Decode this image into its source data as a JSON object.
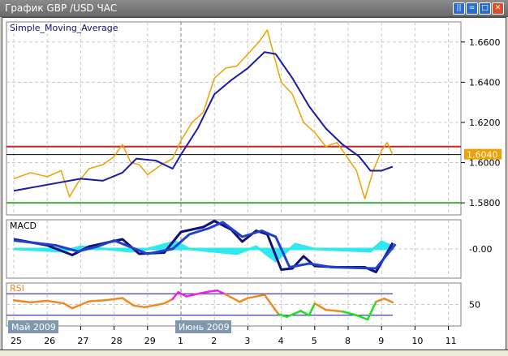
{
  "window": {
    "title": "График GBP /USD  ЧАС",
    "buttons": [
      "tile",
      "maximize-tile",
      "restore",
      "close"
    ]
  },
  "chart_data": [
    {
      "type": "line",
      "panel": "price",
      "title": "Simple_Moving_Average",
      "x_days": [
        "25",
        "26",
        "27",
        "28",
        "29",
        "1",
        "2",
        "3",
        "4",
        "5",
        "8",
        "9",
        "10",
        "11"
      ],
      "month_labels": [
        {
          "text": "Май 2009",
          "day": "25"
        },
        {
          "text": "Июнь 2009",
          "day": "1"
        }
      ],
      "y_ticks": [
        "1.6600",
        "1.6400",
        "1.6200",
        "1.6000",
        "1.5800"
      ],
      "ylim": [
        1.574,
        1.67
      ],
      "grid": true,
      "current_price": "1.6040",
      "horizontal_lines": [
        {
          "value": 1.608,
          "color": "#d02020"
        },
        {
          "value": 1.604,
          "color": "#000000"
        },
        {
          "value": 1.58,
          "color": "#40b040"
        }
      ],
      "series": [
        {
          "kind": "price",
          "color": "#f0a000",
          "points": [
            [
              "2009-05-25 00:00",
              1.592
            ],
            [
              "2009-05-25 12:00",
              1.595
            ],
            [
              "2009-05-26 00:00",
              1.593
            ],
            [
              "2009-05-26 10:00",
              1.596
            ],
            [
              "2009-05-26 16:00",
              1.583
            ],
            [
              "2009-05-26 22:00",
              1.59
            ],
            [
              "2009-05-27 06:00",
              1.597
            ],
            [
              "2009-05-27 16:00",
              1.599
            ],
            [
              "2009-05-28 00:00",
              1.603
            ],
            [
              "2009-05-28 06:00",
              1.609
            ],
            [
              "2009-05-28 12:00",
              1.6
            ],
            [
              "2009-05-28 18:00",
              1.599
            ],
            [
              "2009-05-29 00:00",
              1.594
            ],
            [
              "2009-05-29 10:00",
              1.599
            ],
            [
              "2009-05-29 18:00",
              1.602
            ],
            [
              "2009-06-01 00:00",
              1.611
            ],
            [
              "2009-06-01 08:00",
              1.62
            ],
            [
              "2009-06-01 16:00",
              1.625
            ],
            [
              "2009-06-02 00:00",
              1.642
            ],
            [
              "2009-06-02 08:00",
              1.647
            ],
            [
              "2009-06-02 16:00",
              1.648
            ],
            [
              "2009-06-03 00:00",
              1.654
            ],
            [
              "2009-06-03 08:00",
              1.66
            ],
            [
              "2009-06-03 14:00",
              1.666
            ],
            [
              "2009-06-03 20:00",
              1.65
            ],
            [
              "2009-06-04 00:00",
              1.64
            ],
            [
              "2009-06-04 08:00",
              1.634
            ],
            [
              "2009-06-04 16:00",
              1.62
            ],
            [
              "2009-06-05 00:00",
              1.615
            ],
            [
              "2009-06-05 08:00",
              1.608
            ],
            [
              "2009-06-05 16:00",
              1.61
            ],
            [
              "2009-06-08 00:00",
              1.602
            ],
            [
              "2009-06-08 06:00",
              1.596
            ],
            [
              "2009-06-08 12:00",
              1.582
            ],
            [
              "2009-06-08 18:00",
              1.596
            ],
            [
              "2009-06-09 00:00",
              1.606
            ],
            [
              "2009-06-09 04:00",
              1.61
            ],
            [
              "2009-06-09 08:00",
              1.604
            ]
          ]
        },
        {
          "kind": "sma",
          "color": "#1a1aaa",
          "points": [
            [
              "2009-05-25 00:00",
              1.586
            ],
            [
              "2009-05-26 00:00",
              1.589
            ],
            [
              "2009-05-27 00:00",
              1.592
            ],
            [
              "2009-05-27 16:00",
              1.591
            ],
            [
              "2009-05-28 06:00",
              1.595
            ],
            [
              "2009-05-28 16:00",
              1.602
            ],
            [
              "2009-05-29 06:00",
              1.601
            ],
            [
              "2009-05-29 18:00",
              1.597
            ],
            [
              "2009-06-01 00:00",
              1.604
            ],
            [
              "2009-06-01 12:00",
              1.617
            ],
            [
              "2009-06-02 00:00",
              1.634
            ],
            [
              "2009-06-02 12:00",
              1.641
            ],
            [
              "2009-06-03 00:00",
              1.647
            ],
            [
              "2009-06-03 12:00",
              1.655
            ],
            [
              "2009-06-03 20:00",
              1.654
            ],
            [
              "2009-06-04 08:00",
              1.642
            ],
            [
              "2009-06-04 20:00",
              1.628
            ],
            [
              "2009-06-05 08:00",
              1.617
            ],
            [
              "2009-06-05 20:00",
              1.609
            ],
            [
              "2009-06-08 08:00",
              1.603
            ],
            [
              "2009-06-08 16:00",
              1.596
            ],
            [
              "2009-06-09 00:00",
              1.596
            ],
            [
              "2009-06-09 08:00",
              1.598
            ]
          ]
        }
      ]
    },
    {
      "type": "line",
      "panel": "macd",
      "title": "MACD",
      "y_ticks": [
        "-0.00"
      ],
      "ylim": [
        -0.012,
        0.012
      ],
      "series": [
        {
          "kind": "macd",
          "color": "#10107a",
          "points": [
            [
              "2009-05-25 00:00",
              0.004
            ],
            [
              "2009-05-26 00:00",
              0.0015
            ],
            [
              "2009-05-26 18:00",
              -0.0025
            ],
            [
              "2009-05-27 06:00",
              0.001
            ],
            [
              "2009-05-28 06:00",
              0.004
            ],
            [
              "2009-05-28 18:00",
              -0.002
            ],
            [
              "2009-05-29 12:00",
              -0.0015
            ],
            [
              "2009-06-01 00:00",
              0.007
            ],
            [
              "2009-06-01 16:00",
              0.009
            ],
            [
              "2009-06-02 00:00",
              0.0115
            ],
            [
              "2009-06-02 12:00",
              0.008
            ],
            [
              "2009-06-02 20:00",
              0.003
            ],
            [
              "2009-06-03 06:00",
              0.0075
            ],
            [
              "2009-06-03 14:00",
              0.006
            ],
            [
              "2009-06-04 00:00",
              -0.0085
            ],
            [
              "2009-06-04 08:00",
              -0.008
            ],
            [
              "2009-06-04 16:00",
              -0.003
            ],
            [
              "2009-06-05 00:00",
              -0.007
            ],
            [
              "2009-06-05 16:00",
              -0.0075
            ],
            [
              "2009-06-08 12:00",
              -0.0075
            ],
            [
              "2009-06-08 20:00",
              -0.0095
            ],
            [
              "2009-06-09 08:00",
              0.0025
            ]
          ]
        },
        {
          "kind": "signal",
          "color": "#2040d0",
          "points": [
            [
              "2009-05-25 00:00",
              0.0035
            ],
            [
              "2009-05-26 06:00",
              0.0015
            ],
            [
              "2009-05-26 22:00",
              -0.001
            ],
            [
              "2009-05-27 12:00",
              0.001
            ],
            [
              "2009-05-28 00:00",
              0.0035
            ],
            [
              "2009-05-29 00:00",
              -0.002
            ],
            [
              "2009-05-29 18:00",
              0.0
            ],
            [
              "2009-06-01 06:00",
              0.006
            ],
            [
              "2009-06-01 20:00",
              0.0085
            ],
            [
              "2009-06-02 06:00",
              0.011
            ],
            [
              "2009-06-02 20:00",
              0.005
            ],
            [
              "2009-06-03 10:00",
              0.0075
            ],
            [
              "2009-06-03 20:00",
              0.005
            ],
            [
              "2009-06-04 06:00",
              -0.0075
            ],
            [
              "2009-06-04 20:00",
              -0.006
            ],
            [
              "2009-06-05 12:00",
              -0.0075
            ],
            [
              "2009-06-08 20:00",
              -0.008
            ],
            [
              "2009-06-09 10:00",
              0.002
            ]
          ]
        },
        {
          "kind": "histogram",
          "color": "#30e8f0",
          "points": [
            [
              "2009-05-25 00:00",
              0.0
            ],
            [
              "2009-05-26 12:00",
              -0.001
            ],
            [
              "2009-05-27 00:00",
              0.001
            ],
            [
              "2009-05-28 12:00",
              -0.001
            ],
            [
              "2009-05-29 00:00",
              0.0
            ],
            [
              "2009-05-29 20:00",
              0.003
            ],
            [
              "2009-06-01 06:00",
              0.0
            ],
            [
              "2009-06-02 16:00",
              -0.002
            ],
            [
              "2009-06-03 06:00",
              0.001
            ],
            [
              "2009-06-03 20:00",
              -0.005
            ],
            [
              "2009-06-04 10:00",
              0.002
            ],
            [
              "2009-06-05 00:00",
              0.0
            ],
            [
              "2009-06-08 16:00",
              -0.001
            ],
            [
              "2009-06-09 00:00",
              0.003
            ],
            [
              "2009-06-09 08:00",
              0.001
            ]
          ]
        }
      ]
    },
    {
      "type": "line",
      "panel": "rsi",
      "title": "RSI",
      "y_ticks": [
        "50"
      ],
      "ylim": [
        10,
        90
      ],
      "levels": [
        70,
        30
      ],
      "colors": {
        "normal": "#f08a20",
        "overbought": "#f020f0",
        "oversold": "#20e020",
        "levels": "#1010a0"
      },
      "series": [
        {
          "kind": "rsi",
          "points": [
            [
              "2009-05-25 00:00",
              58
            ],
            [
              "2009-05-25 12:00",
              54
            ],
            [
              "2009-05-26 00:00",
              57
            ],
            [
              "2009-05-26 12:00",
              52
            ],
            [
              "2009-05-26 18:00",
              43
            ],
            [
              "2009-05-27 06:00",
              56
            ],
            [
              "2009-05-27 18:00",
              58
            ],
            [
              "2009-05-28 06:00",
              62
            ],
            [
              "2009-05-28 14:00",
              48
            ],
            [
              "2009-05-28 22:00",
              45
            ],
            [
              "2009-05-29 12:00",
              52
            ],
            [
              "2009-05-29 18:00",
              60
            ],
            [
              "2009-05-29 22:00",
              73
            ],
            [
              "2009-06-01 04:00",
              65
            ],
            [
              "2009-06-01 14:00",
              71
            ],
            [
              "2009-06-01 20:00",
              74
            ],
            [
              "2009-06-02 02:00",
              76
            ],
            [
              "2009-06-02 08:00",
              69
            ],
            [
              "2009-06-02 18:00",
              55
            ],
            [
              "2009-06-03 00:00",
              62
            ],
            [
              "2009-06-03 12:00",
              68
            ],
            [
              "2009-06-03 22:00",
              32
            ],
            [
              "2009-06-04 04:00",
              27
            ],
            [
              "2009-06-04 14:00",
              38
            ],
            [
              "2009-06-04 20:00",
              30
            ],
            [
              "2009-06-05 00:00",
              52
            ],
            [
              "2009-06-05 08:00",
              40
            ],
            [
              "2009-06-05 20:00",
              37
            ],
            [
              "2009-06-08 06:00",
              30
            ],
            [
              "2009-06-08 14:00",
              22
            ],
            [
              "2009-06-08 20:00",
              55
            ],
            [
              "2009-06-09 02:00",
              61
            ],
            [
              "2009-06-09 08:00",
              54
            ]
          ]
        }
      ]
    }
  ]
}
